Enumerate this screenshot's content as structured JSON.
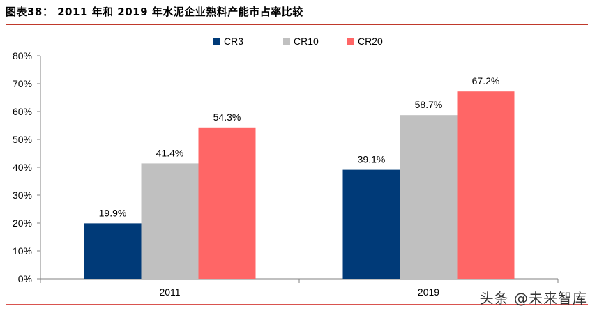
{
  "header": {
    "title": "图表38：  2011 年和 2019 年水泥企业熟料产能市占率比较"
  },
  "watermark": "头条 @未来智库",
  "chart_data": {
    "type": "bar",
    "title": "",
    "xlabel": "",
    "ylabel": "",
    "categories": [
      "2011",
      "2019"
    ],
    "ylim": [
      0,
      80
    ],
    "yticks": [
      "0%",
      "10%",
      "20%",
      "30%",
      "40%",
      "50%",
      "60%",
      "70%",
      "80%"
    ],
    "legend_position": "top-center",
    "grid": false,
    "series": [
      {
        "name": "CR3",
        "color": "#003a78",
        "values": [
          19.9,
          39.1
        ],
        "labels": [
          "19.9%",
          "39.1%"
        ]
      },
      {
        "name": "CR10",
        "color": "#c0c0c0",
        "values": [
          41.4,
          58.7
        ],
        "labels": [
          "41.4%",
          "58.7%"
        ]
      },
      {
        "name": "CR20",
        "color": "#ff6666",
        "values": [
          54.3,
          67.2
        ],
        "labels": [
          "54.3%",
          "67.2%"
        ]
      }
    ]
  }
}
